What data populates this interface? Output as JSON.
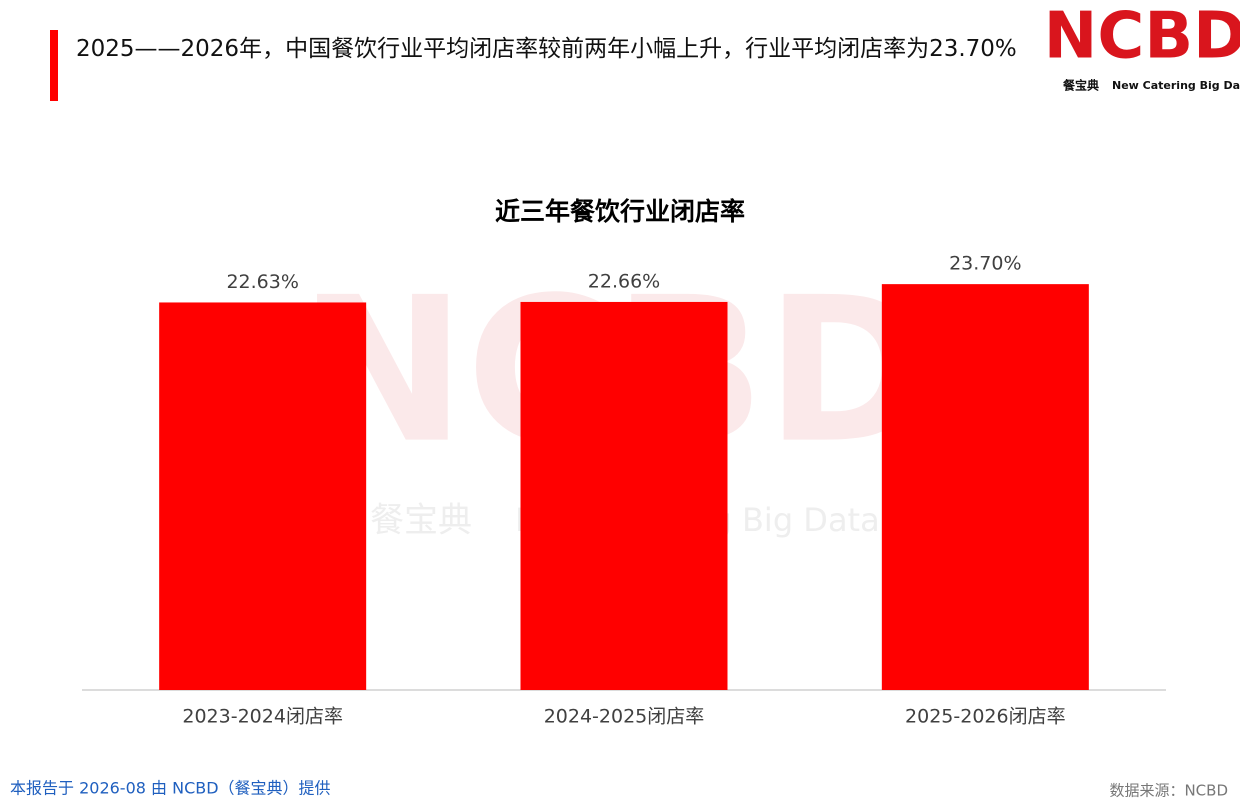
{
  "headline": "2025——2026年，中国餐饮行业平均闭店率较前两年小幅上升，行业平均闭店率为23.70%",
  "logo": {
    "mark": "NCBD",
    "brand": "餐宝典",
    "tagline": "New Catering Big Data"
  },
  "watermark": {
    "mark": "NCBD",
    "brand": "餐宝典",
    "tagline": "New Catering Big Data"
  },
  "chart_data": {
    "type": "bar",
    "title": "近三年餐饮行业闭店率",
    "categories": [
      "2023-2024闭店率",
      "2024-2025闭店率",
      "2025-2026闭店率"
    ],
    "values": [
      22.63,
      22.66,
      23.7
    ],
    "value_labels": [
      "22.63%",
      "22.66%",
      "23.70%"
    ],
    "color": "#ff0000",
    "ylim": [
      0,
      24
    ]
  },
  "footer": {
    "note": "本报告于 2026-08 由 NCBD（餐宝典）提供",
    "source": "数据来源：NCBD"
  }
}
